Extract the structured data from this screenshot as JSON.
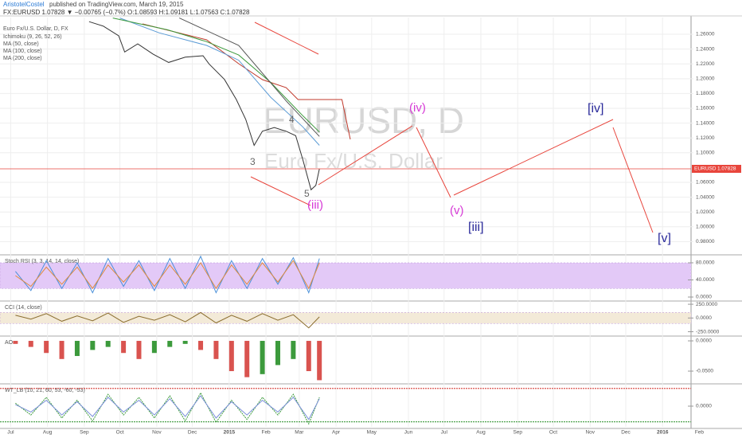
{
  "header": {
    "publisher": "AristotelCostel",
    "published": "published on TradingView.com, March 19, 2015",
    "quote": "FX:EURUSD 1.07828 ▼ −0.00765 (−0.7%) O:1.08593 H:1.09181 L:1.07563 C:1.07828"
  },
  "annotations": {
    "watermark": "EURUSD, D",
    "watermark_sub": "Euro Fx/U.S. Dollar",
    "waves": [
      "(iv)",
      "(v)",
      "(iii)",
      "[iii]",
      "[iv]",
      "[v]",
      "3",
      "4",
      "5"
    ]
  },
  "chart_data": [
    {
      "type": "line",
      "title": "Euro Fx/U.S. Dollar, D, FX",
      "grid": true,
      "xlim": [
        "2014-06-22",
        "2016-01-25"
      ],
      "xticks": [
        {
          "value": "2014-07-01",
          "label": "Jul"
        },
        {
          "value": "2014-08-01",
          "label": "Aug"
        },
        {
          "value": "2014-09-01",
          "label": "Sep"
        },
        {
          "value": "2014-10-01",
          "label": "Oct"
        },
        {
          "value": "2014-11-01",
          "label": "Nov"
        },
        {
          "value": "2014-12-01",
          "label": "Dec"
        },
        {
          "value": "2015-01-01",
          "label": "2015"
        },
        {
          "value": "2015-02-01",
          "label": "Feb"
        },
        {
          "value": "2015-03-01",
          "label": "Mar"
        },
        {
          "value": "2015-04-01",
          "label": "Apr"
        },
        {
          "value": "2015-05-01",
          "label": "May"
        },
        {
          "value": "2015-06-01",
          "label": "Jun"
        },
        {
          "value": "2015-07-01",
          "label": "Jul"
        },
        {
          "value": "2015-08-01",
          "label": "Aug"
        },
        {
          "value": "2015-09-01",
          "label": "Sep"
        },
        {
          "value": "2015-10-01",
          "label": "Oct"
        },
        {
          "value": "2015-11-01",
          "label": "Nov"
        },
        {
          "value": "2015-12-01",
          "label": "Dec"
        },
        {
          "value": "2016-01-01",
          "label": "2016"
        },
        {
          "value": "2016-02-01",
          "label": "Feb"
        }
      ],
      "ylim": [
        0.9643,
        1.2826
      ],
      "yticks": [
        {
          "value": 1.26,
          "label": "1.26000"
        },
        {
          "value": 1.24,
          "label": "1.24000"
        },
        {
          "value": 1.22,
          "label": "1.22000"
        },
        {
          "value": 1.2,
          "label": "1.20000"
        },
        {
          "value": 1.18,
          "label": "1.18000"
        },
        {
          "value": 1.16,
          "label": "1.16000"
        },
        {
          "value": 1.14,
          "label": "1.14000"
        },
        {
          "value": 1.12,
          "label": "1.12000"
        },
        {
          "value": 1.1,
          "label": "1.10000"
        },
        {
          "value": 1.06,
          "label": "1.06000"
        },
        {
          "value": 1.04,
          "label": "1.04000"
        },
        {
          "value": 1.02,
          "label": "1.02000"
        },
        {
          "value": 1.0,
          "label": "1.00000"
        },
        {
          "value": 0.98,
          "label": "0.98000"
        }
      ],
      "last": {
        "symbol": "EURUSD",
        "value": 1.07828,
        "label": "1.07828",
        "color": "#e8453c"
      },
      "price": {
        "color": "#333333",
        "x": [
          "2014-09-05",
          "2014-09-17",
          "2014-09-30",
          "2014-10-05",
          "2014-10-16",
          "2014-10-29",
          "2014-11-11",
          "2014-11-25",
          "2014-12-10",
          "2014-12-15",
          "2014-12-28",
          "2015-01-07",
          "2015-01-15",
          "2015-01-22",
          "2015-01-29",
          "2015-02-08",
          "2015-02-18",
          "2015-02-26",
          "2015-03-04",
          "2015-03-11",
          "2015-03-15",
          "2015-03-18"
        ],
        "values": [
          1.277,
          1.271,
          1.258,
          1.236,
          1.247,
          1.233,
          1.222,
          1.229,
          1.231,
          1.22,
          1.199,
          1.172,
          1.145,
          1.11,
          1.129,
          1.134,
          1.129,
          1.123,
          1.091,
          1.05,
          1.056,
          1.07828
        ]
      },
      "series": [
        {
          "name": "Ichimoku (9, 26, 52, 26)",
          "color": "#c0392b",
          "x": [
            "2014-10-20",
            "2014-12-13",
            "2015-01-09",
            "2015-01-29",
            "2015-02-18",
            "2015-02-28",
            "2015-03-17",
            "2015-04-06",
            "2015-04-13"
          ],
          "values": [
            1.274,
            1.2525,
            1.2202,
            1.1987,
            1.188,
            1.1718,
            1.1718,
            1.1718,
            1.1181
          ]
        },
        {
          "name": "MA (50, close)",
          "color": "#5b9bd5",
          "x": [
            "2014-10-01",
            "2014-11-03",
            "2014-12-13",
            "2015-01-09",
            "2015-02-05",
            "2015-03-04",
            "2015-03-18"
          ],
          "values": [
            1.282,
            1.262,
            1.245,
            1.225,
            1.175,
            1.135,
            1.11
          ]
        },
        {
          "name": "MA (100, close)",
          "color": "#3c9a3c",
          "x": [
            "2014-09-25",
            "2014-11-10",
            "2014-12-13",
            "2015-01-09",
            "2015-02-05",
            "2015-03-04",
            "2015-03-18"
          ],
          "values": [
            1.282,
            1.266,
            1.25,
            1.232,
            1.195,
            1.15,
            1.128
          ]
        },
        {
          "name": "MA (200, close)",
          "color": "#555555",
          "x": [
            "2014-11-20",
            "2015-01-09",
            "2015-02-18",
            "2015-03-18"
          ],
          "values": [
            1.282,
            1.245,
            1.17,
            1.122
          ]
        }
      ]
    },
    {
      "type": "line",
      "title": "Stoch RSI (3, 3, 14, 14, close)",
      "ylim": [
        -5.6,
        94.9
      ],
      "band": [
        20,
        80
      ],
      "band_color": "#e3c9f7",
      "yticks": [
        {
          "value": 80,
          "label": "80.0000"
        },
        {
          "value": 40,
          "label": "40.0000"
        },
        {
          "value": 0,
          "label": "0.0000"
        }
      ],
      "x": [
        "2014-07-05",
        "2014-07-18",
        "2014-07-31",
        "2014-08-13",
        "2014-08-26",
        "2014-09-08",
        "2014-09-21",
        "2014-10-04",
        "2014-10-17",
        "2014-10-30",
        "2014-11-12",
        "2014-11-25",
        "2014-12-08",
        "2014-12-21",
        "2015-01-03",
        "2015-01-16",
        "2015-01-29",
        "2015-02-11",
        "2015-02-24",
        "2015-03-09",
        "2015-03-18"
      ],
      "series": [
        {
          "color": "#4a90d9",
          "values": [
            60,
            15,
            85,
            20,
            80,
            10,
            90,
            25,
            85,
            15,
            90,
            20,
            95,
            10,
            85,
            20,
            90,
            30,
            92,
            10,
            90
          ]
        },
        {
          "color": "#e08a3c",
          "values": [
            50,
            25,
            70,
            30,
            70,
            20,
            75,
            35,
            75,
            25,
            75,
            30,
            80,
            20,
            75,
            30,
            80,
            35,
            85,
            20,
            80
          ]
        }
      ]
    },
    {
      "type": "line",
      "title": "CCI (14, close)",
      "ylim": [
        -300,
        280
      ],
      "band": [
        -100,
        100
      ],
      "band_color": "#f3ead8",
      "yticks": [
        {
          "value": 250,
          "label": "250.0000"
        },
        {
          "value": 0,
          "label": "0.0000"
        },
        {
          "value": -250,
          "label": "-250.0000"
        }
      ],
      "x": [
        "2014-07-05",
        "2014-07-18",
        "2014-07-31",
        "2014-08-13",
        "2014-08-26",
        "2014-09-08",
        "2014-09-21",
        "2014-10-04",
        "2014-10-17",
        "2014-10-30",
        "2014-11-12",
        "2014-11-25",
        "2014-12-08",
        "2014-12-21",
        "2015-01-03",
        "2015-01-16",
        "2015-01-29",
        "2015-02-11",
        "2015-02-24",
        "2015-03-09",
        "2015-03-18"
      ],
      "series": [
        {
          "color": "#8b6d2e",
          "values": [
            50,
            -20,
            80,
            -60,
            40,
            -50,
            90,
            -80,
            30,
            -40,
            60,
            -70,
            100,
            -90,
            50,
            -60,
            80,
            -40,
            60,
            -180,
            20
          ]
        }
      ]
    },
    {
      "type": "bar",
      "title": "AO",
      "ylim": [
        -0.0684,
        0.0053
      ],
      "up_color": "#3c9a3c",
      "down_color": "#d9534f",
      "yticks": [
        {
          "value": 0,
          "label": "0.0000"
        },
        {
          "value": -0.05,
          "label": "-0.0500"
        }
      ],
      "x": [
        "2014-07-05",
        "2014-07-18",
        "2014-07-31",
        "2014-08-13",
        "2014-08-26",
        "2014-09-08",
        "2014-09-21",
        "2014-10-04",
        "2014-10-17",
        "2014-10-30",
        "2014-11-12",
        "2014-11-25",
        "2014-12-08",
        "2014-12-21",
        "2015-01-03",
        "2015-01-16",
        "2015-01-29",
        "2015-02-11",
        "2015-02-24",
        "2015-03-09",
        "2015-03-18"
      ],
      "values": [
        -0.005,
        -0.01,
        -0.02,
        -0.03,
        -0.025,
        -0.015,
        -0.01,
        -0.02,
        -0.03,
        -0.02,
        -0.01,
        -0.005,
        -0.015,
        -0.03,
        -0.05,
        -0.06,
        -0.055,
        -0.04,
        -0.03,
        -0.05,
        -0.065
      ]
    },
    {
      "type": "line",
      "title": "WT_LB (10, 21, 60, 53, -60, -53)",
      "ylim": [
        -70,
        70
      ],
      "yticks": [
        {
          "value": 0,
          "label": "0.0000"
        }
      ],
      "levels": [
        {
          "value": 60,
          "color": "#d9534f"
        },
        {
          "value": -53,
          "color": "#3c9a3c"
        }
      ],
      "x": [
        "2014-07-05",
        "2014-07-18",
        "2014-07-31",
        "2014-08-13",
        "2014-08-26",
        "2014-09-08",
        "2014-09-21",
        "2014-10-04",
        "2014-10-17",
        "2014-10-30",
        "2014-11-12",
        "2014-11-25",
        "2014-12-08",
        "2014-12-21",
        "2015-01-03",
        "2015-01-16",
        "2015-01-29",
        "2015-02-11",
        "2015-02-24",
        "2015-03-09",
        "2015-03-18"
      ],
      "series": [
        {
          "color": "#3c9a3c",
          "values": [
            10,
            -30,
            30,
            -40,
            20,
            -50,
            40,
            -30,
            30,
            -40,
            35,
            -50,
            45,
            -55,
            20,
            -45,
            30,
            -30,
            40,
            -60,
            30
          ]
        },
        {
          "color": "#7a8fd9",
          "values": [
            5,
            -20,
            20,
            -30,
            15,
            -35,
            30,
            -20,
            20,
            -30,
            25,
            -35,
            35,
            -40,
            15,
            -30,
            20,
            -20,
            30,
            -45,
            25
          ]
        }
      ]
    }
  ]
}
